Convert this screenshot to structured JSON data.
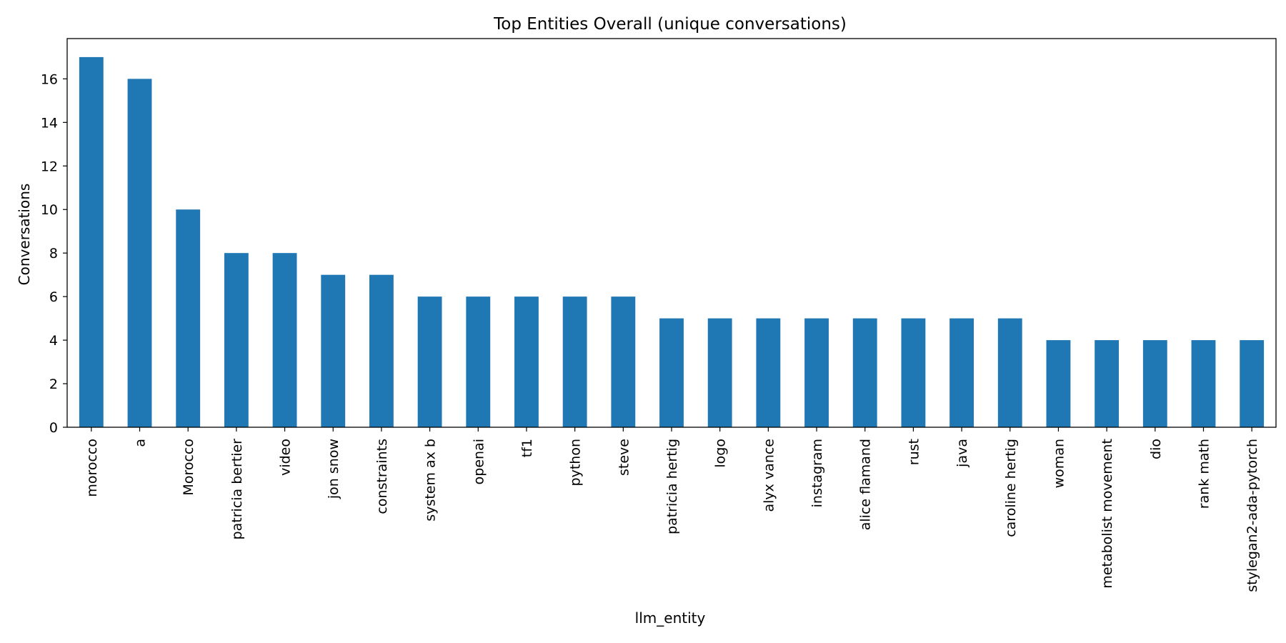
{
  "chart_data": {
    "type": "bar",
    "title": "Top Entities Overall (unique conversations)",
    "xlabel": "llm_entity",
    "ylabel": "Conversations",
    "ylim": [
      0,
      17.85
    ],
    "yticks": [
      0,
      2,
      4,
      6,
      8,
      10,
      12,
      14,
      16
    ],
    "grid": false,
    "legend": "none",
    "bar_color": "#1f77b4",
    "categories": [
      "morocco",
      "a",
      "Morocco",
      "patricia bertier",
      "video",
      "jon snow",
      "constraints",
      "system ax b",
      "openai",
      "tf1",
      "python",
      "steve",
      "patricia hertig",
      "logo",
      "alyx vance",
      "instagram",
      "alice flamand",
      "rust",
      "java",
      "caroline hertig",
      "woman",
      "metabolist movement",
      "dio",
      "rank math",
      "stylegan2-ada-pytorch"
    ],
    "values": [
      17,
      16,
      10,
      8,
      8,
      7,
      7,
      6,
      6,
      6,
      6,
      6,
      5,
      5,
      5,
      5,
      5,
      5,
      5,
      5,
      4,
      4,
      4,
      4,
      4
    ]
  }
}
